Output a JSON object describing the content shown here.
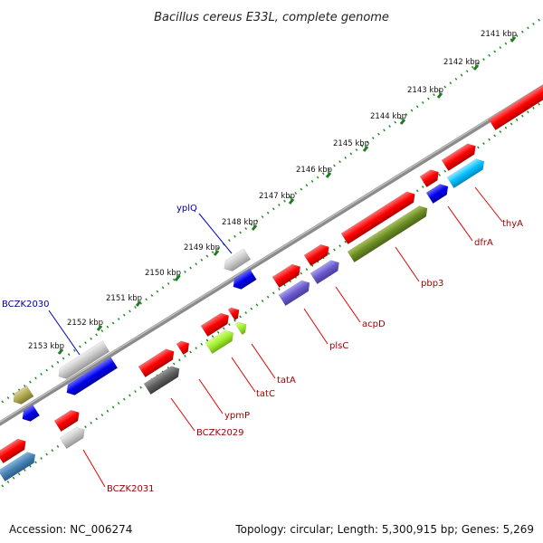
{
  "title": "Bacillus cereus E33L, complete genome",
  "footer": {
    "accession": "Accession: NC_006274",
    "summary": "Topology: circular; Length: 5,300,915 bp; Genes: 5,269"
  },
  "colors": {
    "forward_label": "#000099",
    "reverse_label": "#990000",
    "backbone": "#888888",
    "ticks": "#228B22"
  },
  "ticks": [
    "2141 kbp",
    "2142 kbp",
    "2143 kbp",
    "2144 kbp",
    "2145 kbp",
    "2146 kbp",
    "2147 kbp",
    "2148 kbp",
    "2149 kbp",
    "2150 kbp",
    "2151 kbp",
    "2152 kbp",
    "2153 kbp"
  ],
  "genes": [
    {
      "name": "yplQ",
      "strand": "+"
    },
    {
      "name": "BCZK2030",
      "strand": "+"
    },
    {
      "name": "thyA",
      "strand": "-"
    },
    {
      "name": "dfrA",
      "strand": "-"
    },
    {
      "name": "pbp3",
      "strand": "-"
    },
    {
      "name": "acpD",
      "strand": "-"
    },
    {
      "name": "plsC",
      "strand": "-"
    },
    {
      "name": "tatA",
      "strand": "-"
    },
    {
      "name": "tatC",
      "strand": "-"
    },
    {
      "name": "ypmP",
      "strand": "-"
    },
    {
      "name": "BCZK2029",
      "strand": "-"
    },
    {
      "name": "BCZK2031",
      "strand": "-"
    }
  ]
}
